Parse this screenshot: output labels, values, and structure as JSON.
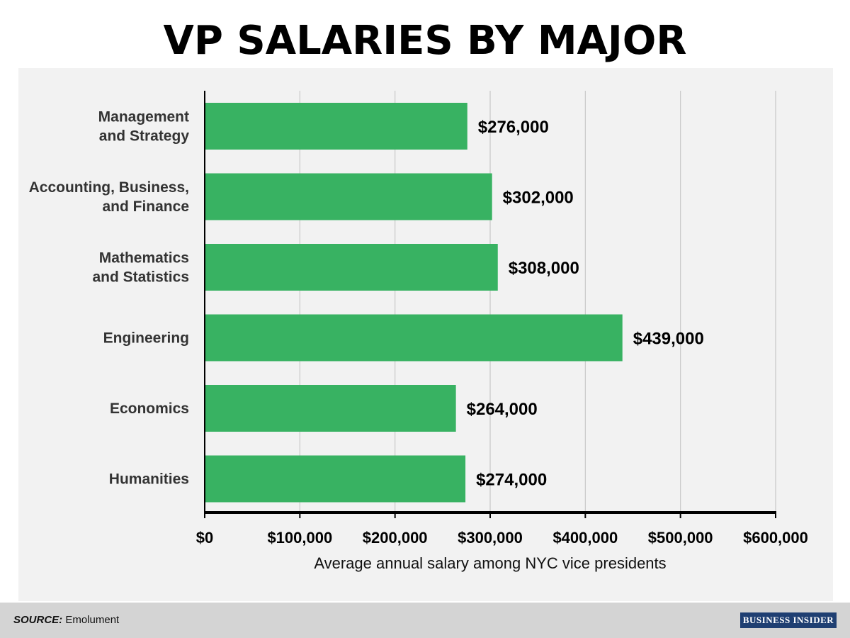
{
  "header": {
    "title": "VP SALARIES BY MAJOR"
  },
  "footer": {
    "source_label": "SOURCE:",
    "source_value": "Emolument",
    "logo_text": "BUSINESS INSIDER"
  },
  "colors": {
    "bar": "#38b262",
    "panel": "#f2f2f2",
    "grid": "#c8c8c8",
    "axis": "#000000",
    "footer": "#d4d4d4",
    "logo": "#1f3f72"
  },
  "chart_data": {
    "type": "bar",
    "orientation": "horizontal",
    "title": "VP SALARIES BY MAJOR",
    "xlabel": "Average annual salary among NYC vice presidents",
    "ylabel": "",
    "categories": [
      [
        "Management",
        "and Strategy"
      ],
      [
        "Accounting, Business,",
        "and Finance"
      ],
      [
        "Mathematics",
        "and Statistics"
      ],
      [
        "Engineering"
      ],
      [
        "Economics"
      ],
      [
        "Humanities"
      ]
    ],
    "values": [
      276000,
      302000,
      308000,
      439000,
      264000,
      274000
    ],
    "value_labels": [
      "$276,000",
      "$302,000",
      "$308,000",
      "$439,000",
      "$264,000",
      "$274,000"
    ],
    "xlim": [
      0,
      600000
    ],
    "x_ticks": [
      0,
      100000,
      200000,
      300000,
      400000,
      500000,
      600000
    ],
    "x_tick_labels": [
      "$0",
      "$100,000",
      "$200,000",
      "$300,000",
      "$400,000",
      "$500,000",
      "$600,000"
    ],
    "grid": true,
    "legend": "none"
  }
}
